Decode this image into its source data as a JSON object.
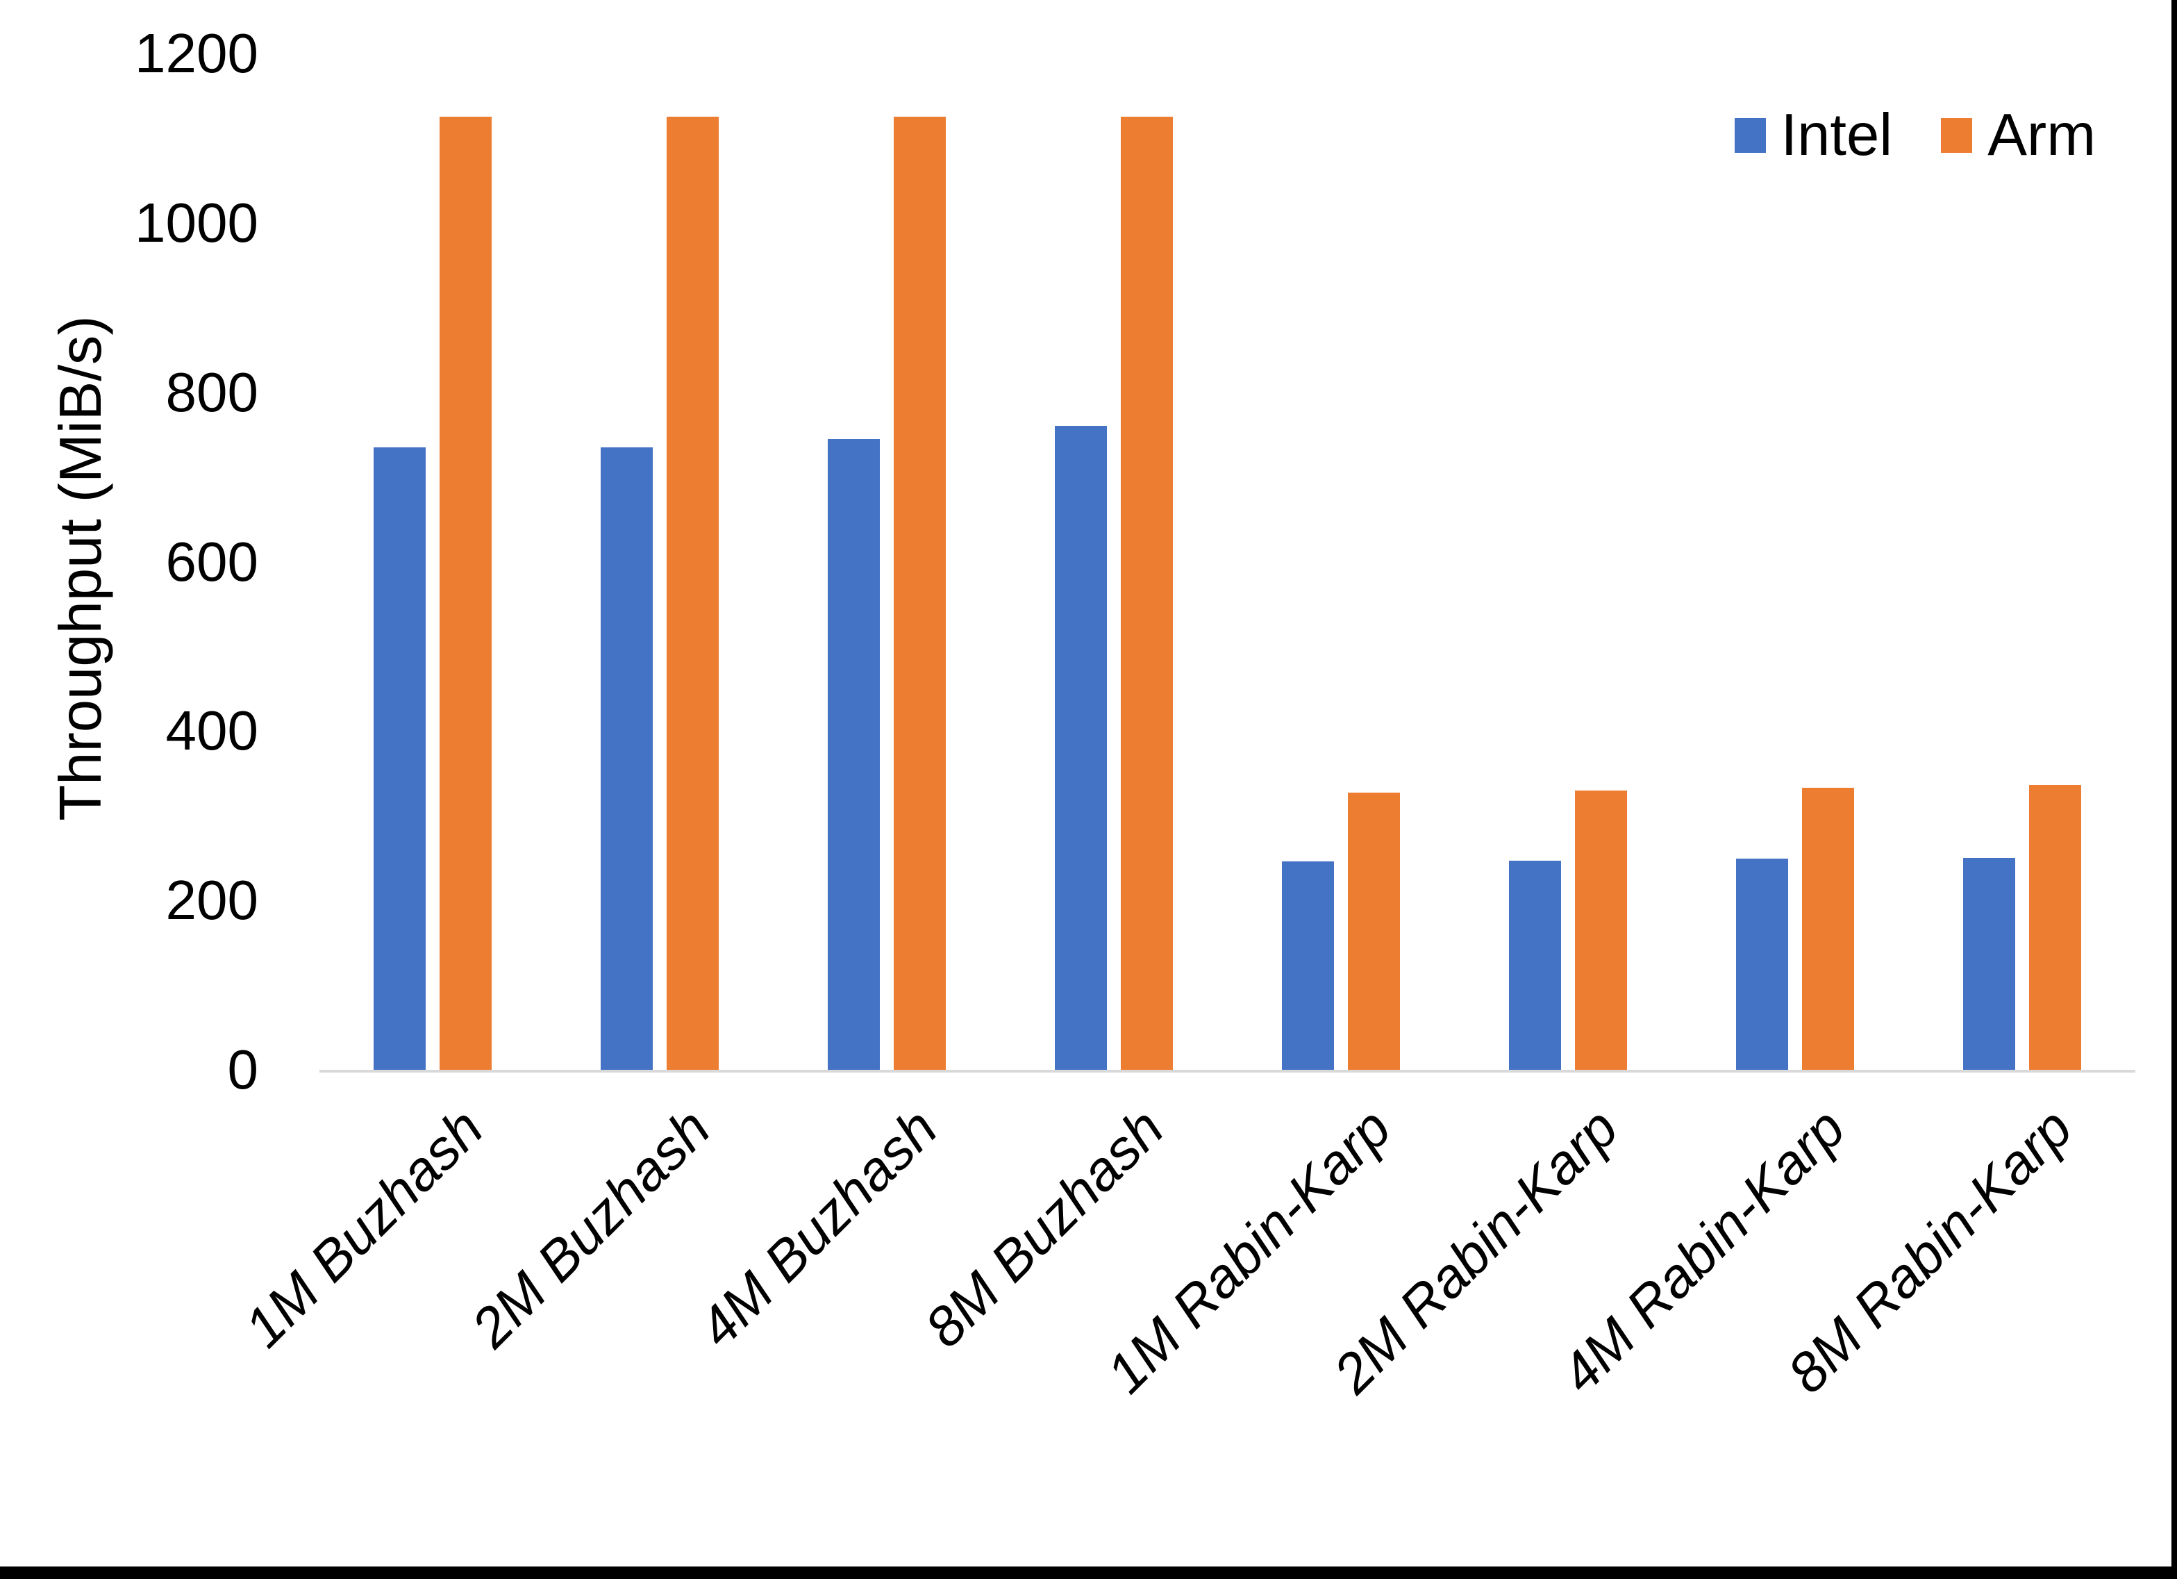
{
  "chart_data": {
    "type": "bar",
    "title": "",
    "xlabel": "",
    "ylabel": "Throughput (MiB/s)",
    "ylim": [
      0,
      1200
    ],
    "yticks": [
      0,
      200,
      400,
      600,
      800,
      1000,
      1200
    ],
    "grid": false,
    "axis_line_color": "#D9D9D9",
    "legend_position": "top-right",
    "categories": [
      "1M Buzhash",
      "2M Buzhash",
      "4M Buzhash",
      "8M Buzhash",
      "1M Rabin-Karp",
      "2M Rabin-Karp",
      "4M Rabin-Karp",
      "8M Rabin-Karp"
    ],
    "series": [
      {
        "name": "Intel",
        "color": "#4472C4",
        "values": [
          735,
          735,
          745,
          760,
          246,
          247,
          249,
          250
        ]
      },
      {
        "name": "Arm",
        "color": "#ED7D31",
        "values": [
          1125,
          1125,
          1125,
          1125,
          327,
          330,
          333,
          336
        ]
      }
    ]
  }
}
